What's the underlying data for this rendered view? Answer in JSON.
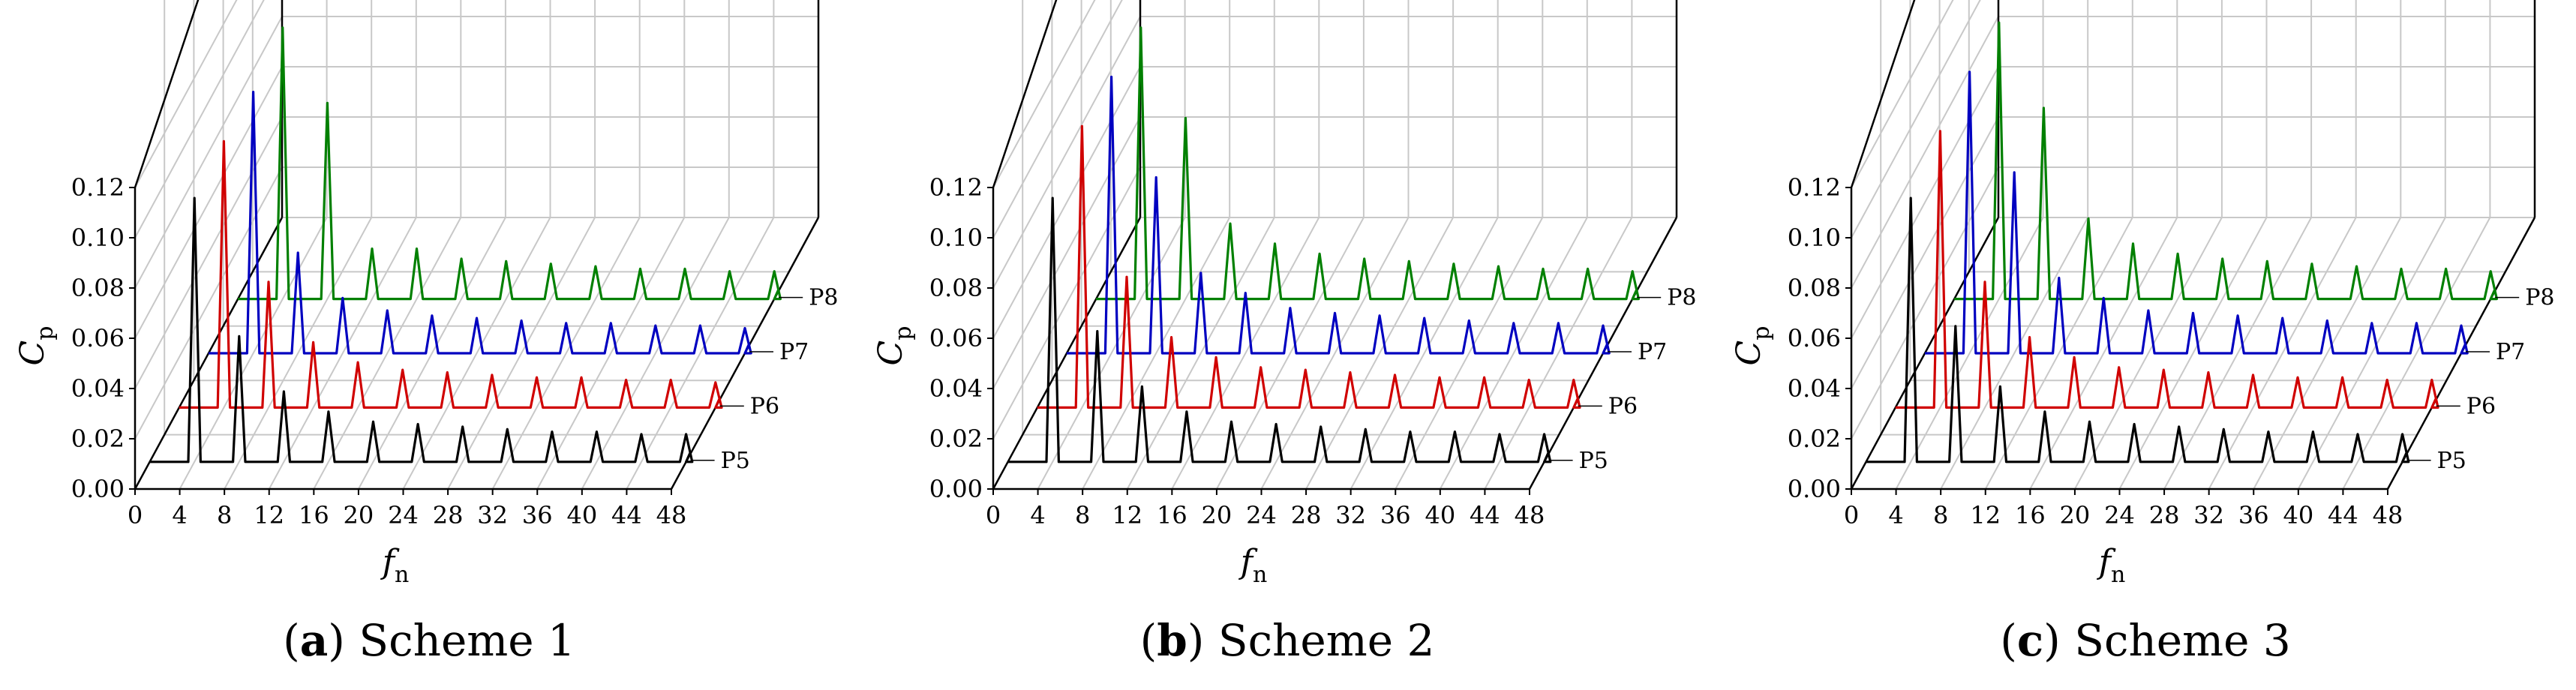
{
  "chart_data": [
    {
      "type": "line",
      "panel_label": "a",
      "caption": "Scheme 1",
      "xlabel": "f",
      "xlabel_sub": "n",
      "ylabel": "C",
      "ylabel_sub": "p",
      "x_ticks": [
        "0",
        "4",
        "8",
        "12",
        "16",
        "20",
        "24",
        "28",
        "32",
        "36",
        "40",
        "44",
        "48"
      ],
      "y_ticks": [
        "0.00",
        "0.02",
        "0.04",
        "0.06",
        "0.08",
        "0.10",
        "0.12"
      ],
      "xlim": [
        0,
        48
      ],
      "ylim": [
        0,
        0.12
      ],
      "z_categories": [
        "P5",
        "P6",
        "P7",
        "P8"
      ],
      "series": [
        {
          "name": "P5",
          "color": "#000000",
          "peaks": [
            [
              4,
              0.105
            ],
            [
              8,
              0.05
            ],
            [
              12,
              0.028
            ],
            [
              16,
              0.02
            ],
            [
              20,
              0.016
            ],
            [
              24,
              0.015
            ],
            [
              28,
              0.014
            ],
            [
              32,
              0.013
            ],
            [
              36,
              0.012
            ],
            [
              40,
              0.012
            ],
            [
              44,
              0.011
            ],
            [
              48,
              0.011
            ]
          ]
        },
        {
          "name": "P6",
          "color": "#d00000",
          "peaks": [
            [
              4,
              0.106
            ],
            [
              8,
              0.05
            ],
            [
              12,
              0.026
            ],
            [
              16,
              0.018
            ],
            [
              20,
              0.015
            ],
            [
              24,
              0.014
            ],
            [
              28,
              0.013
            ],
            [
              32,
              0.012
            ],
            [
              36,
              0.012
            ],
            [
              40,
              0.011
            ],
            [
              44,
              0.011
            ],
            [
              48,
              0.01
            ]
          ]
        },
        {
          "name": "P7",
          "color": "#0000c0",
          "peaks": [
            [
              4,
              0.104
            ],
            [
              8,
              0.04
            ],
            [
              12,
              0.022
            ],
            [
              16,
              0.017
            ],
            [
              20,
              0.015
            ],
            [
              24,
              0.014
            ],
            [
              28,
              0.013
            ],
            [
              32,
              0.012
            ],
            [
              36,
              0.012
            ],
            [
              40,
              0.011
            ],
            [
              44,
              0.011
            ],
            [
              48,
              0.01
            ]
          ]
        },
        {
          "name": "P8",
          "color": "#008000",
          "peaks": [
            [
              4,
              0.108
            ],
            [
              8,
              0.078
            ],
            [
              12,
              0.02
            ],
            [
              16,
              0.02
            ],
            [
              20,
              0.016
            ],
            [
              24,
              0.015
            ],
            [
              28,
              0.014
            ],
            [
              32,
              0.013
            ],
            [
              36,
              0.012
            ],
            [
              40,
              0.012
            ],
            [
              44,
              0.011
            ],
            [
              48,
              0.011
            ]
          ]
        }
      ]
    },
    {
      "type": "line",
      "panel_label": "b",
      "caption": "Scheme 2",
      "xlabel": "f",
      "xlabel_sub": "n",
      "ylabel": "C",
      "ylabel_sub": "p",
      "x_ticks": [
        "0",
        "4",
        "8",
        "12",
        "16",
        "20",
        "24",
        "28",
        "32",
        "36",
        "40",
        "44",
        "48"
      ],
      "y_ticks": [
        "0.00",
        "0.02",
        "0.04",
        "0.06",
        "0.08",
        "0.10",
        "0.12"
      ],
      "xlim": [
        0,
        48
      ],
      "ylim": [
        0,
        0.12
      ],
      "z_categories": [
        "P5",
        "P6",
        "P7",
        "P8"
      ],
      "series": [
        {
          "name": "P5",
          "color": "#000000",
          "peaks": [
            [
              4,
              0.105
            ],
            [
              8,
              0.052
            ],
            [
              12,
              0.03
            ],
            [
              16,
              0.02
            ],
            [
              20,
              0.016
            ],
            [
              24,
              0.015
            ],
            [
              28,
              0.014
            ],
            [
              32,
              0.013
            ],
            [
              36,
              0.012
            ],
            [
              40,
              0.012
            ],
            [
              44,
              0.011
            ],
            [
              48,
              0.011
            ]
          ]
        },
        {
          "name": "P6",
          "color": "#d00000",
          "peaks": [
            [
              4,
              0.112
            ],
            [
              8,
              0.052
            ],
            [
              12,
              0.028
            ],
            [
              16,
              0.02
            ],
            [
              20,
              0.016
            ],
            [
              24,
              0.015
            ],
            [
              28,
              0.014
            ],
            [
              32,
              0.013
            ],
            [
              36,
              0.012
            ],
            [
              40,
              0.012
            ],
            [
              44,
              0.011
            ],
            [
              48,
              0.011
            ]
          ]
        },
        {
          "name": "P7",
          "color": "#0000c0",
          "peaks": [
            [
              4,
              0.11
            ],
            [
              8,
              0.07
            ],
            [
              12,
              0.032
            ],
            [
              16,
              0.024
            ],
            [
              20,
              0.018
            ],
            [
              24,
              0.016
            ],
            [
              28,
              0.015
            ],
            [
              32,
              0.014
            ],
            [
              36,
              0.013
            ],
            [
              40,
              0.012
            ],
            [
              44,
              0.012
            ],
            [
              48,
              0.011
            ]
          ]
        },
        {
          "name": "P8",
          "color": "#008000",
          "peaks": [
            [
              4,
              0.108
            ],
            [
              8,
              0.072
            ],
            [
              12,
              0.03
            ],
            [
              16,
              0.022
            ],
            [
              20,
              0.018
            ],
            [
              24,
              0.016
            ],
            [
              28,
              0.015
            ],
            [
              32,
              0.014
            ],
            [
              36,
              0.013
            ],
            [
              40,
              0.012
            ],
            [
              44,
              0.012
            ],
            [
              48,
              0.011
            ]
          ]
        }
      ]
    },
    {
      "type": "line",
      "panel_label": "c",
      "caption": "Scheme 3",
      "xlabel": "f",
      "xlabel_sub": "n",
      "ylabel": "C",
      "ylabel_sub": "p",
      "x_ticks": [
        "0",
        "4",
        "8",
        "12",
        "16",
        "20",
        "24",
        "28",
        "32",
        "36",
        "40",
        "44",
        "48"
      ],
      "y_ticks": [
        "0.00",
        "0.02",
        "0.04",
        "0.06",
        "0.08",
        "0.10",
        "0.12"
      ],
      "xlim": [
        0,
        48
      ],
      "ylim": [
        0,
        0.12
      ],
      "z_categories": [
        "P5",
        "P6",
        "P7",
        "P8"
      ],
      "series": [
        {
          "name": "P5",
          "color": "#000000",
          "peaks": [
            [
              4,
              0.105
            ],
            [
              8,
              0.054
            ],
            [
              12,
              0.03
            ],
            [
              16,
              0.02
            ],
            [
              20,
              0.016
            ],
            [
              24,
              0.015
            ],
            [
              28,
              0.014
            ],
            [
              32,
              0.013
            ],
            [
              36,
              0.012
            ],
            [
              40,
              0.012
            ],
            [
              44,
              0.011
            ],
            [
              48,
              0.011
            ]
          ]
        },
        {
          "name": "P6",
          "color": "#d00000",
          "peaks": [
            [
              4,
              0.11
            ],
            [
              8,
              0.05
            ],
            [
              12,
              0.028
            ],
            [
              16,
              0.02
            ],
            [
              20,
              0.016
            ],
            [
              24,
              0.015
            ],
            [
              28,
              0.014
            ],
            [
              32,
              0.013
            ],
            [
              36,
              0.012
            ],
            [
              40,
              0.012
            ],
            [
              44,
              0.011
            ],
            [
              48,
              0.011
            ]
          ]
        },
        {
          "name": "P7",
          "color": "#0000c0",
          "peaks": [
            [
              4,
              0.112
            ],
            [
              8,
              0.072
            ],
            [
              12,
              0.03
            ],
            [
              16,
              0.022
            ],
            [
              20,
              0.017
            ],
            [
              24,
              0.016
            ],
            [
              28,
              0.015
            ],
            [
              32,
              0.014
            ],
            [
              36,
              0.013
            ],
            [
              40,
              0.012
            ],
            [
              44,
              0.012
            ],
            [
              48,
              0.011
            ]
          ]
        },
        {
          "name": "P8",
          "color": "#008000",
          "peaks": [
            [
              4,
              0.11
            ],
            [
              8,
              0.076
            ],
            [
              12,
              0.032
            ],
            [
              16,
              0.022
            ],
            [
              20,
              0.018
            ],
            [
              24,
              0.016
            ],
            [
              28,
              0.015
            ],
            [
              32,
              0.014
            ],
            [
              36,
              0.013
            ],
            [
              40,
              0.012
            ],
            [
              44,
              0.012
            ],
            [
              48,
              0.011
            ]
          ]
        }
      ]
    }
  ]
}
